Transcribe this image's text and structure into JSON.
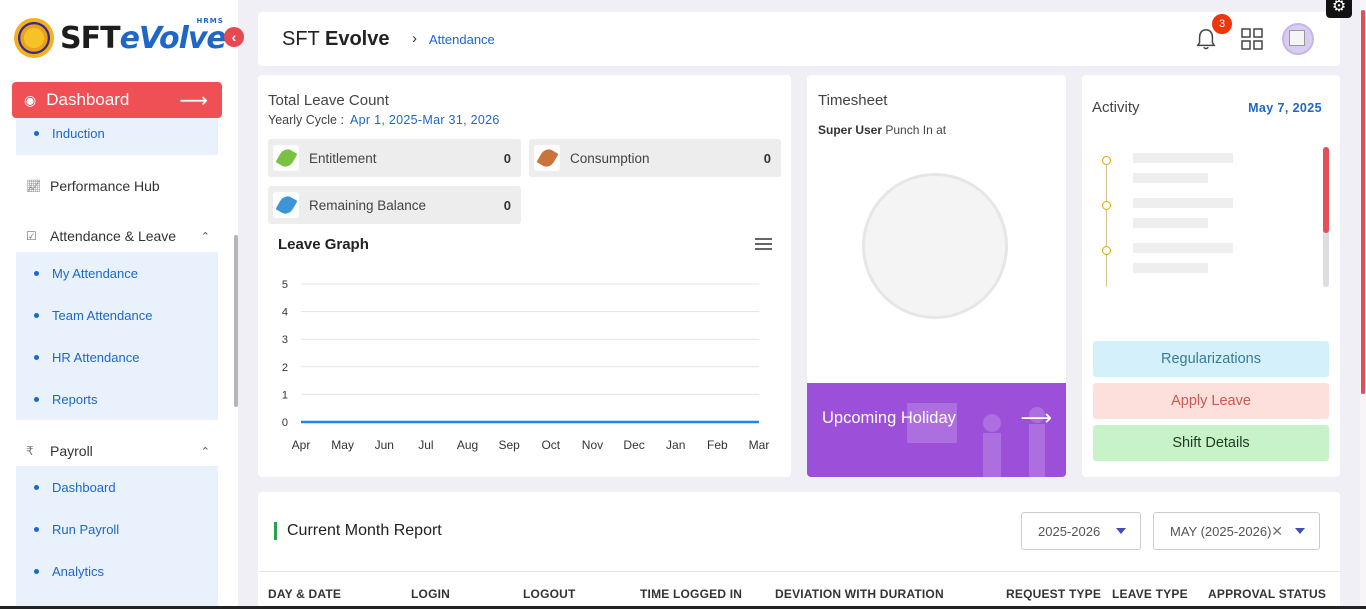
{
  "logo": {
    "brand_sft": "SFT",
    "brand_evolve": "eVolve",
    "tag": "HRMS"
  },
  "sidebar": {
    "dashboard_label": "Dashboard",
    "induction": "Induction",
    "performance_hub": "Performance Hub",
    "attendance_leave": "Attendance & Leave",
    "attendance_items": [
      "My Attendance",
      "Team Attendance",
      "HR Attendance",
      "Reports"
    ],
    "payroll": "Payroll",
    "payroll_symbol": "₹",
    "payroll_items": [
      "Dashboard",
      "Run Payroll",
      "Analytics"
    ]
  },
  "header": {
    "title_light": "SFT",
    "title_bold": "Evolve",
    "breadcrumb": "Attendance",
    "notification_count": "3"
  },
  "leave": {
    "title": "Total Leave Count",
    "cycle_label": "Yearly Cycle :",
    "cycle_value": "Apr 1, 2025-Mar 31, 2026",
    "entitlement_label": "Entitlement",
    "entitlement_value": "0",
    "consumption_label": "Consumption",
    "consumption_value": "0",
    "remaining_label": "Remaining Balance",
    "remaining_value": "0",
    "graph_title": "Leave Graph"
  },
  "chart_data": {
    "type": "line",
    "title": "Leave Graph",
    "categories": [
      "Apr",
      "May",
      "Jun",
      "Jul",
      "Aug",
      "Sep",
      "Oct",
      "Nov",
      "Dec",
      "Jan",
      "Feb",
      "Mar"
    ],
    "values": [
      0,
      0,
      0,
      0,
      0,
      0,
      0,
      0,
      0,
      0,
      0,
      0
    ],
    "yticks": [
      0,
      1,
      2,
      3,
      4,
      5
    ],
    "ylim": [
      0,
      5
    ],
    "color": "#1e88e5",
    "grid": true
  },
  "timesheet": {
    "title": "Timesheet",
    "user": "Super User",
    "punch_text": "Punch In at",
    "holiday_label": "Upcoming Holiday"
  },
  "activity": {
    "title": "Activity",
    "date": "May 7, 2025",
    "buttons": {
      "regularizations": "Regularizations",
      "apply_leave": "Apply Leave",
      "shift_details": "Shift Details"
    }
  },
  "report": {
    "title": "Current Month Report",
    "year_select": "2025-2026",
    "month_select": "MAY (2025-2026)",
    "columns": [
      "DAY & DATE",
      "LOGIN",
      "LOGOUT",
      "TIME LOGGED IN",
      "DEVIATION WITH DURATION",
      "REQUEST TYPE",
      "LEAVE TYPE",
      "APPROVAL STATUS"
    ]
  },
  "colors": {
    "accent_red": "#ef5056",
    "link_blue": "#1e67c8",
    "holiday_purple": "#9c4fd8",
    "regularize_bg": "#d3f0fb",
    "apply_bg": "#fde0dc",
    "shift_bg": "#c8f3c9"
  }
}
